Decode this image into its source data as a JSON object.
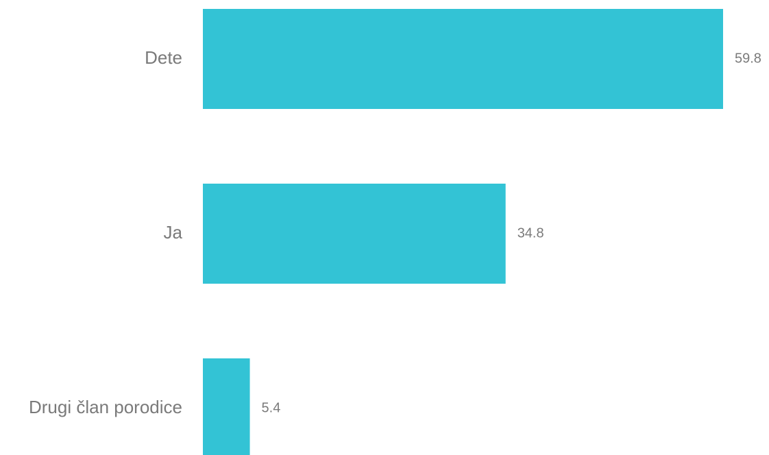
{
  "chart_data": {
    "type": "bar",
    "orientation": "horizontal",
    "categories": [
      "Dete",
      "Ja",
      "Drugi član porodice"
    ],
    "values": [
      59.8,
      34.8,
      5.4
    ],
    "title": "",
    "xlabel": "",
    "ylabel": "",
    "xlim": [
      0,
      59.8
    ],
    "grid": false,
    "legend": "none",
    "bar_color": "#33c3d5",
    "label_color": "#7a7a7a"
  }
}
